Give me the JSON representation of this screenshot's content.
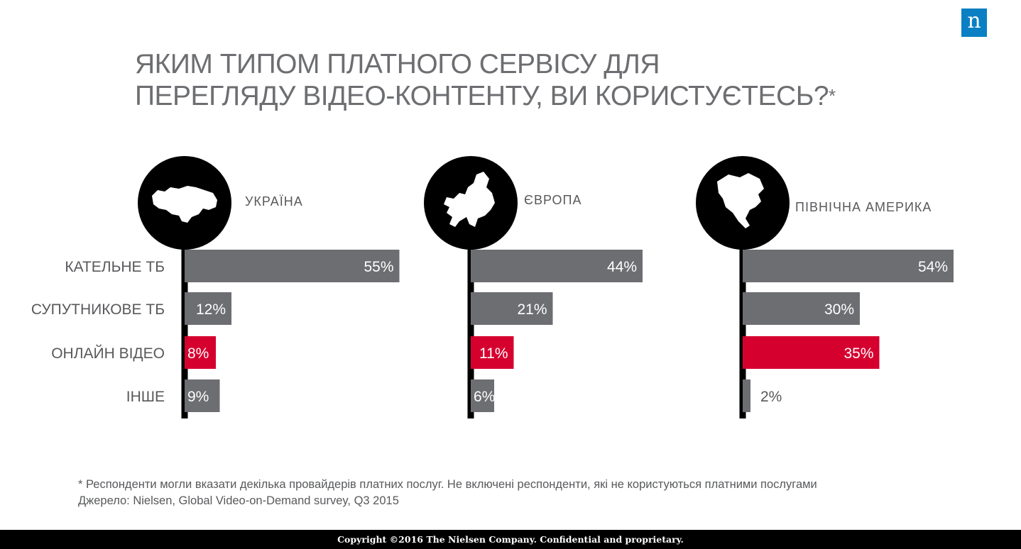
{
  "header": {
    "logo_letter": "n",
    "title_line1": "ЯКИМ ТИПОМ ПЛАТНОГО СЕРВІСУ ДЛЯ",
    "title_line2": "ПЕРЕГЛЯДУ ВІДЕО-КОНТЕНТУ, ВИ КОРИСТУЄТЕСЬ?",
    "title_mark": "*"
  },
  "chart_data": {
    "type": "bar",
    "orientation": "horizontal",
    "categories": [
      "КАТЕЛЬНЕ ТБ",
      "СУПУТНИКОВЕ ТБ",
      "ОНЛАЙН ВІДЕО",
      "ІНШЕ"
    ],
    "series": [
      {
        "name": "УКРАЇНА",
        "icon": "ukraine-map-icon",
        "values": [
          55,
          12,
          8,
          9
        ],
        "labels": [
          "55%",
          "12%",
          "8%",
          "9%"
        ]
      },
      {
        "name": "ЄВРОПА",
        "icon": "europe-map-icon",
        "values": [
          44,
          21,
          11,
          6
        ],
        "labels": [
          "44%",
          "21%",
          "11%",
          "6%"
        ]
      },
      {
        "name": "ПІВНІЧНА АМЕРИКА",
        "icon": "north-america-map-icon",
        "values": [
          54,
          30,
          35,
          2
        ],
        "labels": [
          "54%",
          "30%",
          "35%",
          "2%"
        ]
      }
    ],
    "highlight_category": "ОНЛАЙН ВІДЕО",
    "colors": {
      "bar": "#6d6e71",
      "highlight": "#d6002f",
      "axis": "#000000",
      "circle": "#000000"
    },
    "xlim": [
      0,
      60
    ],
    "grid": false
  },
  "footnote": {
    "line1": "* Респонденти могли вказати декілька провайдерів платних послуг. Не включені респонденти, які не користуються платними послугами",
    "line2": "Джерело: Nielsen, Global Video-on-Demand survey, Q3 2015"
  },
  "footer": {
    "copyright": "Copyright ©2016 The Nielsen Company.  Confidential and proprietary."
  }
}
